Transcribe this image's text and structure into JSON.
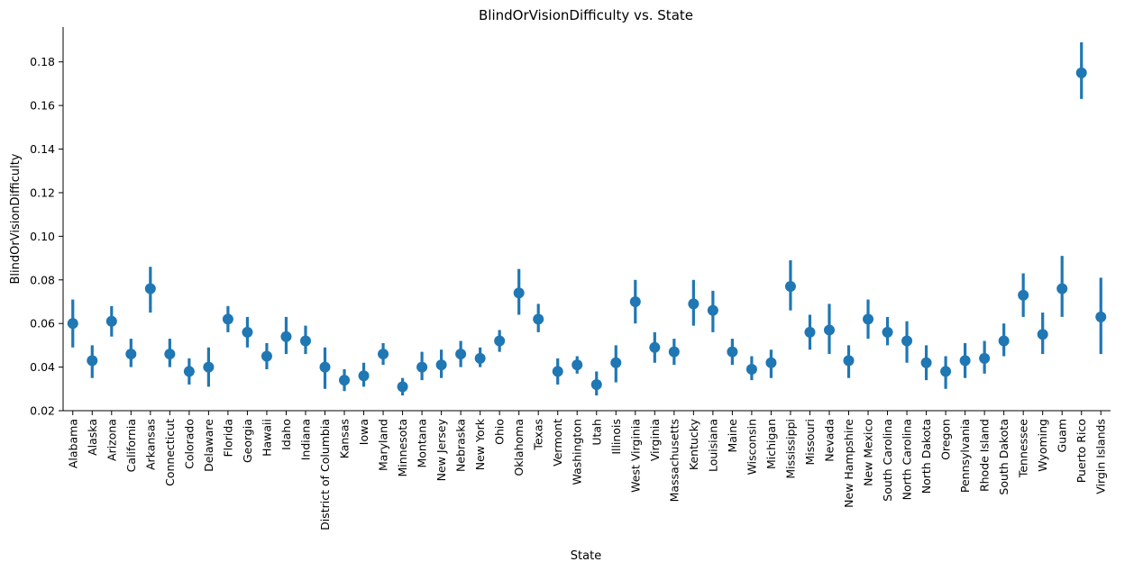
{
  "chart_data": {
    "type": "scatter",
    "style": "pointplot-with-error-bars",
    "title": "BlindOrVisionDifficulty vs. State",
    "xlabel": "State",
    "ylabel": "BlindOrVisionDifficulty",
    "ylim": [
      0.02,
      0.196
    ],
    "yticks": [
      "0.02",
      "0.04",
      "0.06",
      "0.08",
      "0.10",
      "0.12",
      "0.14",
      "0.16",
      "0.18"
    ],
    "grid": false,
    "color": "#1f77b4",
    "categories": [
      "Alabama",
      "Alaska",
      "Arizona",
      "California",
      "Arkansas",
      "Connecticut",
      "Colorado",
      "Delaware",
      "Florida",
      "Georgia",
      "Hawaii",
      "Idaho",
      "Indiana",
      "District of Columbia",
      "Kansas",
      "Iowa",
      "Maryland",
      "Minnesota",
      "Montana",
      "New Jersey",
      "Nebraska",
      "New York",
      "Ohio",
      "Oklahoma",
      "Texas",
      "Vermont",
      "Washington",
      "Utah",
      "Illinois",
      "West Virginia",
      "Virginia",
      "Massachusetts",
      "Kentucky",
      "Louisiana",
      "Maine",
      "Wisconsin",
      "Michigan",
      "Mississippi",
      "Missouri",
      "Nevada",
      "New Hampshire",
      "New Mexico",
      "South Carolina",
      "North Carolina",
      "North Dakota",
      "Oregon",
      "Pennsylvania",
      "Rhode Island",
      "South Dakota",
      "Tennessee",
      "Wyoming",
      "Guam",
      "Puerto Rico",
      "Virgin Islands"
    ],
    "values": [
      0.06,
      0.043,
      0.061,
      0.046,
      0.076,
      0.046,
      0.038,
      0.04,
      0.062,
      0.056,
      0.045,
      0.054,
      0.052,
      0.04,
      0.034,
      0.036,
      0.046,
      0.031,
      0.04,
      0.041,
      0.046,
      0.044,
      0.052,
      0.074,
      0.062,
      0.038,
      0.041,
      0.032,
      0.042,
      0.07,
      0.049,
      0.047,
      0.069,
      0.066,
      0.047,
      0.039,
      0.042,
      0.077,
      0.056,
      0.057,
      0.043,
      0.062,
      0.056,
      0.052,
      0.042,
      0.038,
      0.043,
      0.044,
      0.052,
      0.073,
      0.055,
      0.076,
      0.175,
      0.063
    ],
    "ci_low": [
      0.049,
      0.035,
      0.054,
      0.04,
      0.065,
      0.04,
      0.032,
      0.031,
      0.056,
      0.049,
      0.039,
      0.046,
      0.046,
      0.03,
      0.029,
      0.031,
      0.041,
      0.027,
      0.034,
      0.035,
      0.04,
      0.04,
      0.047,
      0.064,
      0.056,
      0.032,
      0.037,
      0.027,
      0.033,
      0.06,
      0.042,
      0.041,
      0.059,
      0.056,
      0.041,
      0.034,
      0.035,
      0.066,
      0.048,
      0.046,
      0.035,
      0.053,
      0.05,
      0.042,
      0.034,
      0.03,
      0.035,
      0.037,
      0.045,
      0.063,
      0.046,
      0.063,
      0.163,
      0.046
    ],
    "ci_high": [
      0.071,
      0.05,
      0.068,
      0.053,
      0.086,
      0.053,
      0.044,
      0.049,
      0.068,
      0.063,
      0.051,
      0.063,
      0.059,
      0.049,
      0.039,
      0.042,
      0.051,
      0.035,
      0.047,
      0.048,
      0.052,
      0.049,
      0.057,
      0.085,
      0.069,
      0.044,
      0.045,
      0.038,
      0.05,
      0.08,
      0.056,
      0.053,
      0.08,
      0.075,
      0.053,
      0.045,
      0.048,
      0.089,
      0.064,
      0.069,
      0.05,
      0.071,
      0.063,
      0.061,
      0.05,
      0.045,
      0.051,
      0.052,
      0.06,
      0.083,
      0.065,
      0.091,
      0.189,
      0.081
    ]
  }
}
